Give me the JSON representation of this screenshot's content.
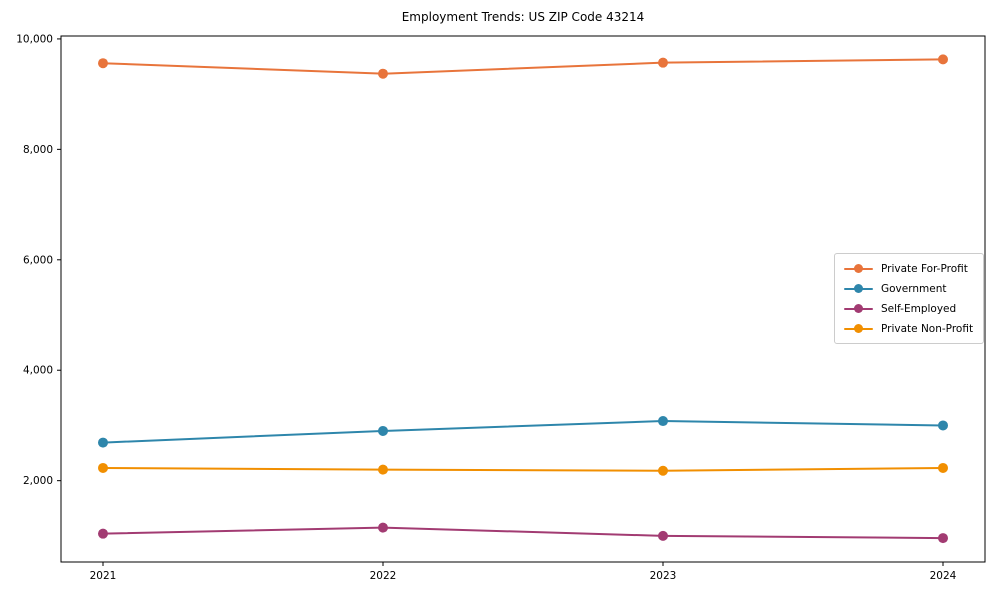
{
  "chart_data": {
    "type": "line",
    "title": "Employment Trends: US ZIP Code 43214",
    "xlabel": "",
    "ylabel": "",
    "x": [
      2021,
      2022,
      2023,
      2024
    ],
    "xtick_labels": [
      "2021",
      "2022",
      "2023",
      "2024"
    ],
    "yticks": [
      2000,
      4000,
      6000,
      8000,
      10000
    ],
    "ytick_labels": [
      "2,000",
      "4,000",
      "6,000",
      "8,000",
      "10,000"
    ],
    "xlim": [
      2020.85,
      2024.15
    ],
    "ylim": [
      527,
      10053
    ],
    "grid": false,
    "legend_position": "center right",
    "axis_color": "#000000",
    "series": [
      {
        "name": "Private For-Profit",
        "color": "#E8743B",
        "values": [
          9560,
          9370,
          9570,
          9630
        ]
      },
      {
        "name": "Government",
        "color": "#2E86AB",
        "values": [
          2690,
          2900,
          3080,
          3000
        ]
      },
      {
        "name": "Self-Employed",
        "color": "#A23B72",
        "values": [
          1040,
          1150,
          1000,
          960
        ]
      },
      {
        "name": "Private Non-Profit",
        "color": "#F18F01",
        "values": [
          2230,
          2200,
          2180,
          2230
        ]
      }
    ]
  }
}
